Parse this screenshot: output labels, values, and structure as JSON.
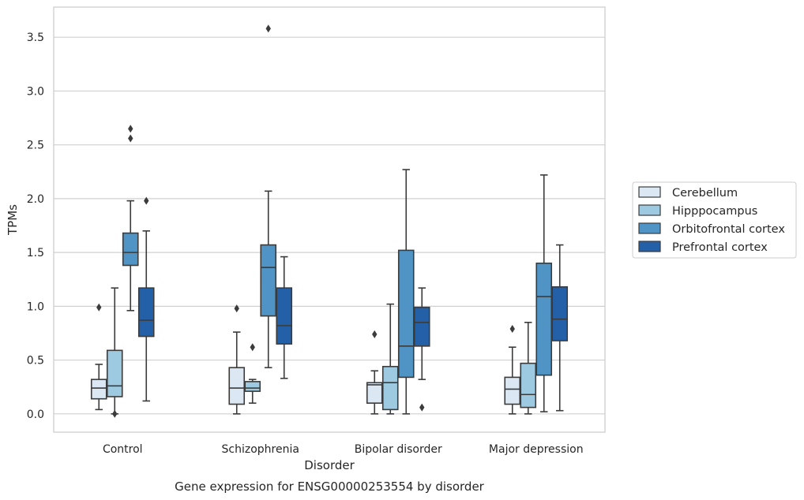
{
  "chart_data": {
    "type": "box",
    "title": "Gene expression for ENSG00000253554 by disorder",
    "xlabel": "Disorder",
    "ylabel": "TPMs",
    "ylim": [
      -0.17,
      3.78
    ],
    "yticks": [
      0.0,
      0.5,
      1.0,
      1.5,
      2.0,
      2.5,
      3.0,
      3.5
    ],
    "ytick_labels": [
      "0.0",
      "0.5",
      "1.0",
      "1.5",
      "2.0",
      "2.5",
      "3.0",
      "3.5"
    ],
    "grid": "horizontal",
    "legend_position": "right, outside plot",
    "categories": [
      "Control",
      "Schizophrenia",
      "Bipolar disorder",
      "Major depression"
    ],
    "series": [
      {
        "name": "Cerebellum",
        "color": "#dbe8f4",
        "boxes": [
          {
            "whisker_low": 0.04,
            "q1": 0.14,
            "median": 0.24,
            "q3": 0.32,
            "whisker_high": 0.46,
            "outliers": [
              0.99
            ]
          },
          {
            "whisker_low": 0.0,
            "q1": 0.09,
            "median": 0.24,
            "q3": 0.43,
            "whisker_high": 0.76,
            "outliers": [
              0.98
            ]
          },
          {
            "whisker_low": 0.0,
            "q1": 0.1,
            "median": 0.27,
            "q3": 0.29,
            "whisker_high": 0.4,
            "outliers": [
              0.74
            ]
          },
          {
            "whisker_low": 0.0,
            "q1": 0.09,
            "median": 0.23,
            "q3": 0.34,
            "whisker_high": 0.62,
            "outliers": [
              0.79
            ]
          }
        ]
      },
      {
        "name": "Hipppocampus",
        "color": "#9ecae1",
        "boxes": [
          {
            "whisker_low": 0.0,
            "q1": 0.16,
            "median": 0.26,
            "q3": 0.59,
            "whisker_high": 1.17,
            "outliers": [
              0.0
            ]
          },
          {
            "whisker_low": 0.1,
            "q1": 0.21,
            "median": 0.24,
            "q3": 0.3,
            "whisker_high": 0.32,
            "outliers": [
              0.62
            ]
          },
          {
            "whisker_low": 0.0,
            "q1": 0.04,
            "median": 0.29,
            "q3": 0.44,
            "whisker_high": 1.02,
            "outliers": []
          },
          {
            "whisker_low": 0.0,
            "q1": 0.06,
            "median": 0.18,
            "q3": 0.47,
            "whisker_high": 0.85,
            "outliers": []
          }
        ]
      },
      {
        "name": "Orbitofrontal cortex",
        "color": "#4f94c4",
        "boxes": [
          {
            "whisker_low": 0.96,
            "q1": 1.38,
            "median": 1.5,
            "q3": 1.68,
            "whisker_high": 1.98,
            "outliers": [
              2.56,
              2.65
            ]
          },
          {
            "whisker_low": 0.43,
            "q1": 0.91,
            "median": 1.36,
            "q3": 1.57,
            "whisker_high": 2.07,
            "outliers": [
              3.58
            ]
          },
          {
            "whisker_low": 0.0,
            "q1": 0.34,
            "median": 0.63,
            "q3": 1.52,
            "whisker_high": 2.27,
            "outliers": []
          },
          {
            "whisker_low": 0.02,
            "q1": 0.36,
            "median": 1.09,
            "q3": 1.4,
            "whisker_high": 2.22,
            "outliers": []
          }
        ]
      },
      {
        "name": "Prefrontal cortex",
        "color": "#2460a7",
        "boxes": [
          {
            "whisker_low": 0.12,
            "q1": 0.72,
            "median": 0.87,
            "q3": 1.17,
            "whisker_high": 1.7,
            "outliers": [
              1.98
            ]
          },
          {
            "whisker_low": 0.33,
            "q1": 0.65,
            "median": 0.82,
            "q3": 1.17,
            "whisker_high": 1.46,
            "outliers": []
          },
          {
            "whisker_low": 0.32,
            "q1": 0.63,
            "median": 0.85,
            "q3": 0.99,
            "whisker_high": 1.17,
            "outliers": [
              0.06
            ]
          },
          {
            "whisker_low": 0.03,
            "q1": 0.68,
            "median": 0.88,
            "q3": 1.18,
            "whisker_high": 1.57,
            "outliers": []
          }
        ]
      }
    ]
  }
}
